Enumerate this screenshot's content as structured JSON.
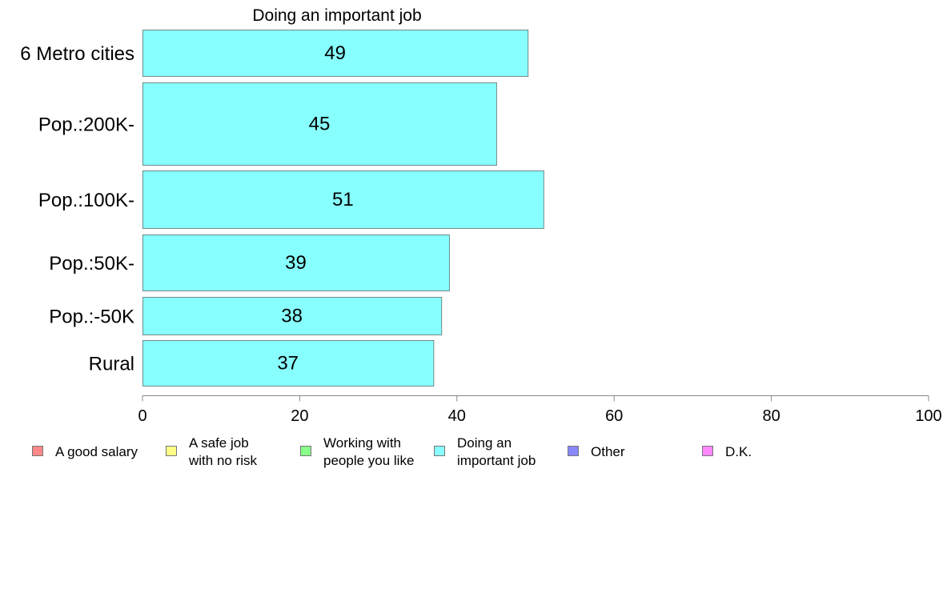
{
  "chart_data": {
    "type": "bar",
    "orientation": "horizontal",
    "title": "Doing an important job",
    "xlabel": "",
    "ylabel": "",
    "categories": [
      "6 Metro cities",
      "Pop.:200K-",
      "Pop.:100K-",
      "Pop.:50K-",
      "Pop.:-50K",
      "Rural"
    ],
    "values": [
      49,
      45,
      51,
      39,
      38,
      37
    ],
    "xlim": [
      0,
      100
    ],
    "xticks": [
      0,
      20,
      40,
      60,
      80,
      100
    ],
    "bar_color": "#88ffff",
    "grid": false,
    "legend": {
      "placement": "bottom",
      "items": [
        {
          "lines": [
            "A good salary"
          ],
          "color": "#ff8888"
        },
        {
          "lines": [
            "A safe job",
            "with no risk"
          ],
          "color": "#ffff88"
        },
        {
          "lines": [
            "Working with",
            "people you like"
          ],
          "color": "#88ff88"
        },
        {
          "lines": [
            "Doing an",
            "important job"
          ],
          "color": "#88ffff"
        },
        {
          "lines": [
            "Other"
          ],
          "color": "#8888ff"
        },
        {
          "lines": [
            "D.K."
          ],
          "color": "#ff88ff"
        }
      ]
    }
  }
}
